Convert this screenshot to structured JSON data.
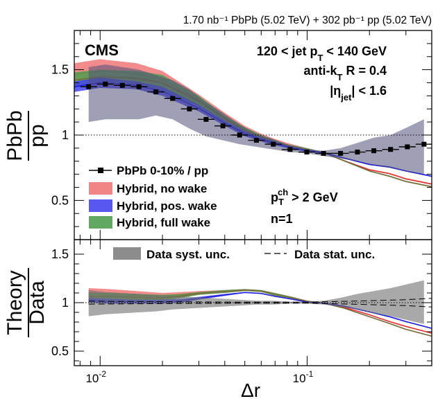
{
  "header": {
    "lumi_text": "1.70 nb⁻¹ PbPb (5.02 TeV) + 302 pb⁻¹ pp (5.02 TeV)"
  },
  "chart_data": [
    {
      "type": "line",
      "panel": "top",
      "experiment": "CMS",
      "ylabel_num": "PbPb",
      "ylabel_den": "pp",
      "xlabel": "Δr",
      "xscale": "log",
      "xlim": [
        0.0075,
        0.4
      ],
      "ylim": [
        0.2,
        1.8
      ],
      "yticks": [
        0.5,
        1,
        1.5
      ],
      "xtick_labels": [
        "10⁻²",
        "10⁻¹"
      ],
      "reference_line": 1,
      "annotations": {
        "jet_pt": "120 < jet p_T < 140 GeV",
        "algo": "anti-k_T R = 0.4",
        "eta": "|η_jet| < 1.6",
        "track_pt": "p_T^ch > 2 GeV",
        "n": "n=1"
      },
      "legend": [
        {
          "label": "PbPb 0-10% / pp",
          "color": "#000000"
        },
        {
          "label": "Hybrid, no wake",
          "color": "#f07878"
        },
        {
          "label": "Hybrid, pos. wake",
          "color": "#4545ee"
        },
        {
          "label": "Hybrid, full wake",
          "color": "#509e50"
        }
      ],
      "data": {
        "x": [
          0.0088,
          0.0106,
          0.0128,
          0.0154,
          0.0186,
          0.0224,
          0.027,
          0.0325,
          0.0392,
          0.0472,
          0.0569,
          0.0686,
          0.0827,
          0.0996,
          0.12,
          0.145,
          0.175,
          0.21,
          0.253,
          0.305,
          0.367
        ],
        "y": [
          1.37,
          1.39,
          1.38,
          1.37,
          1.33,
          1.28,
          1.2,
          1.12,
          1.07,
          1.0,
          0.96,
          0.93,
          0.89,
          0.87,
          0.86,
          0.86,
          0.87,
          0.88,
          0.89,
          0.91,
          0.93
        ],
        "syst_low": [
          1.1,
          1.12,
          1.12,
          1.12,
          1.15,
          1.12,
          1.05,
          0.99,
          0.96,
          0.93,
          0.91,
          0.89,
          0.87,
          0.86,
          0.84,
          0.82,
          0.8,
          0.77,
          0.75,
          0.72,
          0.7
        ],
        "syst_high": [
          1.52,
          1.54,
          1.52,
          1.5,
          1.46,
          1.42,
          1.35,
          1.25,
          1.17,
          1.08,
          1.01,
          0.97,
          0.92,
          0.89,
          0.88,
          0.9,
          0.94,
          0.98,
          1.0,
          1.06,
          1.12
        ]
      },
      "series": [
        {
          "name": "Hybrid, no wake",
          "x": [
            0.0075,
            0.01,
            0.015,
            0.02,
            0.03,
            0.04,
            0.05,
            0.06,
            0.07,
            0.08,
            0.1,
            0.12,
            0.15,
            0.2,
            0.25,
            0.3,
            0.4
          ],
          "low": [
            1.38,
            1.4,
            1.39,
            1.36,
            1.23,
            1.1,
            1.02,
            0.97,
            0.93,
            0.91,
            0.88,
            0.86,
            0.8,
            0.73,
            0.7,
            0.66,
            0.62
          ],
          "high": [
            1.55,
            1.58,
            1.55,
            1.49,
            1.31,
            1.17,
            1.07,
            1.01,
            0.97,
            0.94,
            0.9,
            0.87,
            0.81,
            0.74,
            0.71,
            0.67,
            0.63
          ]
        },
        {
          "name": "Hybrid, pos. wake",
          "x": [
            0.0075,
            0.01,
            0.015,
            0.02,
            0.03,
            0.04,
            0.05,
            0.06,
            0.07,
            0.08,
            0.1,
            0.12,
            0.15,
            0.2,
            0.25,
            0.3,
            0.4
          ],
          "low": [
            1.33,
            1.36,
            1.35,
            1.3,
            1.18,
            1.07,
            0.99,
            0.95,
            0.92,
            0.9,
            0.87,
            0.86,
            0.82,
            0.77,
            0.75,
            0.72,
            0.68
          ],
          "high": [
            1.41,
            1.44,
            1.41,
            1.37,
            1.23,
            1.11,
            1.03,
            0.98,
            0.95,
            0.92,
            0.89,
            0.87,
            0.83,
            0.78,
            0.76,
            0.73,
            0.69
          ]
        },
        {
          "name": "Hybrid, full wake",
          "x": [
            0.0075,
            0.01,
            0.015,
            0.02,
            0.03,
            0.04,
            0.05,
            0.06,
            0.07,
            0.08,
            0.1,
            0.12,
            0.15,
            0.2,
            0.25,
            0.3,
            0.4
          ],
          "low": [
            1.36,
            1.39,
            1.38,
            1.34,
            1.22,
            1.1,
            1.01,
            0.97,
            0.93,
            0.91,
            0.88,
            0.86,
            0.8,
            0.72,
            0.68,
            0.64,
            0.6
          ],
          "high": [
            1.48,
            1.5,
            1.49,
            1.46,
            1.3,
            1.15,
            1.06,
            1.0,
            0.96,
            0.93,
            0.9,
            0.87,
            0.81,
            0.73,
            0.69,
            0.65,
            0.61
          ]
        }
      ]
    },
    {
      "type": "line",
      "panel": "bottom",
      "ylabel_num": "Theory",
      "ylabel_den": "Data",
      "xlabel": "Δr",
      "xscale": "log",
      "xlim": [
        0.0075,
        0.4
      ],
      "ylim": [
        0.35,
        1.65
      ],
      "yticks": [
        0.5,
        1,
        1.5
      ],
      "reference_line": 1,
      "legend": [
        {
          "label": "Data syst. unc.",
          "color": "#888888"
        },
        {
          "label": "Data stat. unc.",
          "color": "#000000"
        }
      ],
      "syst_band": {
        "x": [
          0.0088,
          0.0106,
          0.0128,
          0.0154,
          0.0186,
          0.0224,
          0.027,
          0.0325,
          0.0392,
          0.0472,
          0.0569,
          0.0686,
          0.0827,
          0.0996,
          0.12,
          0.145,
          0.175,
          0.21,
          0.253,
          0.305,
          0.367
        ],
        "low": [
          0.86,
          0.88,
          0.89,
          0.9,
          0.91,
          0.93,
          0.94,
          0.95,
          0.96,
          0.97,
          0.98,
          0.98,
          0.99,
          0.99,
          0.98,
          0.96,
          0.93,
          0.89,
          0.86,
          0.82,
          0.78
        ],
        "high": [
          1.13,
          1.11,
          1.1,
          1.09,
          1.08,
          1.07,
          1.06,
          1.05,
          1.04,
          1.03,
          1.02,
          1.02,
          1.01,
          1.01,
          1.02,
          1.05,
          1.09,
          1.12,
          1.15,
          1.19,
          1.23
        ]
      },
      "stat_band": {
        "x": [
          0.0088,
          0.02,
          0.05,
          0.1,
          0.2,
          0.3,
          0.4
        ],
        "low": [
          0.985,
          0.99,
          0.995,
          0.995,
          0.98,
          0.97,
          0.955
        ],
        "high": [
          1.015,
          1.01,
          1.005,
          1.005,
          1.02,
          1.03,
          1.045
        ]
      },
      "series": [
        {
          "name": "Hybrid, no wake",
          "x": [
            0.0088,
            0.011,
            0.015,
            0.02,
            0.025,
            0.03,
            0.04,
            0.05,
            0.06,
            0.07,
            0.085,
            0.1,
            0.12,
            0.15,
            0.2,
            0.25,
            0.3,
            0.4
          ],
          "low": [
            1.05,
            1.04,
            1.03,
            1.03,
            1.06,
            1.08,
            1.1,
            1.12,
            1.11,
            1.07,
            1.04,
            1.01,
            0.99,
            0.95,
            0.87,
            0.8,
            0.75,
            0.68
          ],
          "high": [
            1.15,
            1.14,
            1.12,
            1.1,
            1.11,
            1.12,
            1.13,
            1.14,
            1.13,
            1.1,
            1.06,
            1.02,
            1.0,
            0.96,
            0.88,
            0.81,
            0.76,
            0.69
          ]
        },
        {
          "name": "Hybrid, pos. wake",
          "x": [
            0.0088,
            0.011,
            0.015,
            0.02,
            0.025,
            0.03,
            0.04,
            0.05,
            0.06,
            0.07,
            0.085,
            0.1,
            0.12,
            0.15,
            0.2,
            0.25,
            0.3,
            0.4
          ],
          "low": [
            1.0,
            0.99,
            0.99,
            0.99,
            1.0,
            1.03,
            1.07,
            1.1,
            1.09,
            1.06,
            1.03,
            1.0,
            0.99,
            0.96,
            0.9,
            0.85,
            0.8,
            0.73
          ],
          "high": [
            1.05,
            1.04,
            1.03,
            1.03,
            1.04,
            1.06,
            1.09,
            1.11,
            1.1,
            1.07,
            1.04,
            1.01,
            1.0,
            0.97,
            0.91,
            0.86,
            0.81,
            0.74
          ]
        },
        {
          "name": "Hybrid, full wake",
          "x": [
            0.0088,
            0.011,
            0.015,
            0.02,
            0.025,
            0.03,
            0.04,
            0.05,
            0.06,
            0.07,
            0.085,
            0.1,
            0.12,
            0.15,
            0.2,
            0.25,
            0.3,
            0.4
          ],
          "low": [
            1.03,
            1.03,
            1.02,
            1.02,
            1.05,
            1.08,
            1.1,
            1.12,
            1.11,
            1.07,
            1.04,
            1.01,
            0.99,
            0.94,
            0.85,
            0.78,
            0.72,
            0.65
          ],
          "high": [
            1.1,
            1.1,
            1.09,
            1.08,
            1.09,
            1.11,
            1.13,
            1.14,
            1.13,
            1.1,
            1.06,
            1.02,
            1.0,
            0.95,
            0.86,
            0.79,
            0.73,
            0.66
          ]
        }
      ]
    }
  ]
}
